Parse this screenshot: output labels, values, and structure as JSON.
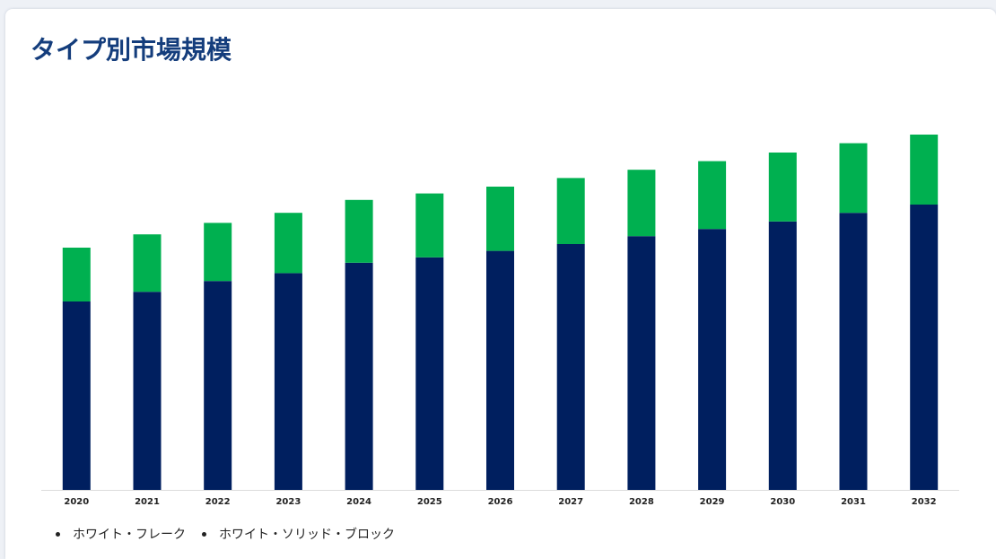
{
  "page": {
    "title": "タイプ別市場規模"
  },
  "colors": {
    "title": "#143d7c",
    "series_bottom": "#001f5f",
    "series_top": "#00b050",
    "axis": "#dcdcdc"
  },
  "chart_data": {
    "type": "bar",
    "stacked": true,
    "title": "タイプ別市場規模",
    "xlabel": "",
    "ylabel": "",
    "grid": false,
    "y_axis_visible": false,
    "legend_position": "bottom-left",
    "ylim": [
      0,
      100
    ],
    "categories": [
      "2020",
      "2021",
      "2022",
      "2023",
      "2024",
      "2025",
      "2026",
      "2027",
      "2028",
      "2029",
      "2030",
      "2031",
      "2032"
    ],
    "series": [
      {
        "name": "ホワイト・フレーク",
        "color": "#001f5f",
        "values": [
          52.5,
          55.2,
          58.2,
          60.4,
          63.3,
          64.8,
          66.6,
          68.5,
          70.7,
          72.7,
          74.8,
          77.2,
          79.5
        ]
      },
      {
        "name": "ホワイト・ソリッド・ブロック",
        "color": "#00b050",
        "values": [
          15.0,
          16.0,
          16.2,
          16.8,
          17.5,
          17.8,
          17.9,
          18.4,
          18.5,
          18.9,
          19.2,
          19.4,
          19.5
        ]
      }
    ]
  }
}
